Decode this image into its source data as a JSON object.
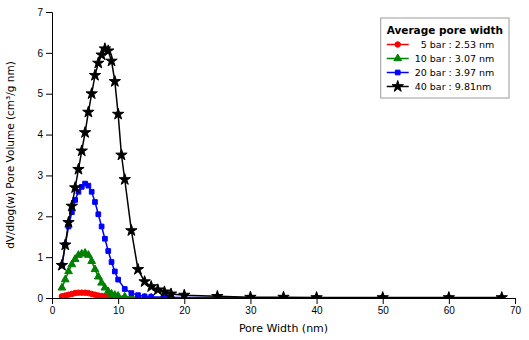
{
  "chart_data": {
    "type": "line",
    "xlabel": "Pore Width (nm)",
    "ylabel": "dV/dlog(w) Pore Volume (cm³/g nm)",
    "xlim": [
      0,
      70
    ],
    "ylim": [
      0,
      7
    ],
    "xticks": [
      0,
      10,
      20,
      30,
      40,
      50,
      60,
      70
    ],
    "yticks": [
      0,
      1,
      2,
      3,
      4,
      5,
      6,
      7
    ],
    "grid": false,
    "legend": "upper right",
    "legend_title": "Average pore width",
    "series": [
      {
        "name": "  5 bar : 2.53 nm",
        "color": "red",
        "marker": "circle",
        "x": [
          1.5,
          2.0,
          2.5,
          3.0,
          3.5,
          4.0,
          4.5,
          5.0,
          5.5,
          6.0,
          6.5,
          7.0,
          7.5,
          8.0,
          8.5,
          9.0,
          9.5,
          10.0,
          11.0,
          12.0,
          13.0,
          15.0,
          20.0,
          25.0,
          30.0,
          40.0,
          50.0,
          60.0,
          68.0
        ],
        "values": [
          0.04,
          0.06,
          0.08,
          0.1,
          0.12,
          0.13,
          0.13,
          0.13,
          0.12,
          0.1,
          0.08,
          0.06,
          0.05,
          0.04,
          0.03,
          0.02,
          0.02,
          0.01,
          0.01,
          0.01,
          0.01,
          0.0,
          0.0,
          0.0,
          0.0,
          0.0,
          0.0,
          0.0,
          0.0
        ]
      },
      {
        "name": "10 bar : 3.07 nm",
        "color": "green",
        "marker": "triangle",
        "x": [
          1.5,
          2.0,
          2.5,
          3.0,
          3.5,
          4.0,
          4.5,
          5.0,
          5.5,
          6.0,
          6.5,
          7.0,
          7.5,
          8.0,
          8.5,
          9.0,
          9.5,
          10.0,
          11.0,
          12.0,
          13.0,
          14.0,
          15.0,
          20.0,
          25.0,
          30.0,
          40.0,
          50.0,
          60.0,
          68.0
        ],
        "values": [
          0.25,
          0.45,
          0.65,
          0.82,
          0.95,
          1.05,
          1.08,
          1.1,
          1.05,
          0.9,
          0.7,
          0.52,
          0.37,
          0.25,
          0.16,
          0.1,
          0.07,
          0.05,
          0.03,
          0.02,
          0.01,
          0.01,
          0.01,
          0.0,
          0.0,
          0.0,
          0.0,
          0.0,
          0.0,
          0.0
        ]
      },
      {
        "name": "20 bar : 3.97 nm",
        "color": "blue",
        "marker": "square",
        "x": [
          1.5,
          2.0,
          2.5,
          3.0,
          3.5,
          4.0,
          4.5,
          5.0,
          5.5,
          6.0,
          6.5,
          7.0,
          7.5,
          8.0,
          8.5,
          9.0,
          9.5,
          10.0,
          11.0,
          12.0,
          13.0,
          14.0,
          15.0,
          17.0,
          20.0,
          25.0,
          30.0,
          40.0,
          50.0,
          60.0,
          68.0
        ],
        "values": [
          0.8,
          1.3,
          1.75,
          2.1,
          2.4,
          2.6,
          2.72,
          2.8,
          2.75,
          2.6,
          2.35,
          2.05,
          1.75,
          1.45,
          1.15,
          0.88,
          0.65,
          0.45,
          0.22,
          0.12,
          0.07,
          0.04,
          0.03,
          0.02,
          0.01,
          0.01,
          0.0,
          0.0,
          0.0,
          0.0,
          0.0
        ]
      },
      {
        "name": "40 bar : 9.81nm",
        "color": "black",
        "marker": "star",
        "x": [
          1.5,
          2.0,
          2.5,
          3.0,
          3.5,
          4.0,
          4.5,
          5.0,
          5.5,
          6.0,
          6.5,
          7.0,
          7.5,
          8.0,
          8.5,
          9.0,
          9.5,
          10.0,
          10.5,
          11.0,
          12.0,
          13.0,
          14.0,
          15.0,
          16.0,
          17.0,
          18.0,
          20.0,
          25.0,
          30.0,
          35.0,
          40.0,
          50.0,
          60.0,
          68.0
        ],
        "values": [
          0.8,
          1.3,
          1.85,
          2.25,
          2.7,
          3.15,
          3.6,
          4.05,
          4.55,
          5.0,
          5.45,
          5.75,
          5.95,
          6.1,
          6.05,
          5.8,
          5.3,
          4.5,
          3.5,
          2.9,
          1.65,
          0.7,
          0.4,
          0.28,
          0.2,
          0.15,
          0.1,
          0.07,
          0.04,
          0.02,
          0.02,
          0.01,
          0.01,
          0.01,
          0.01
        ]
      }
    ]
  }
}
